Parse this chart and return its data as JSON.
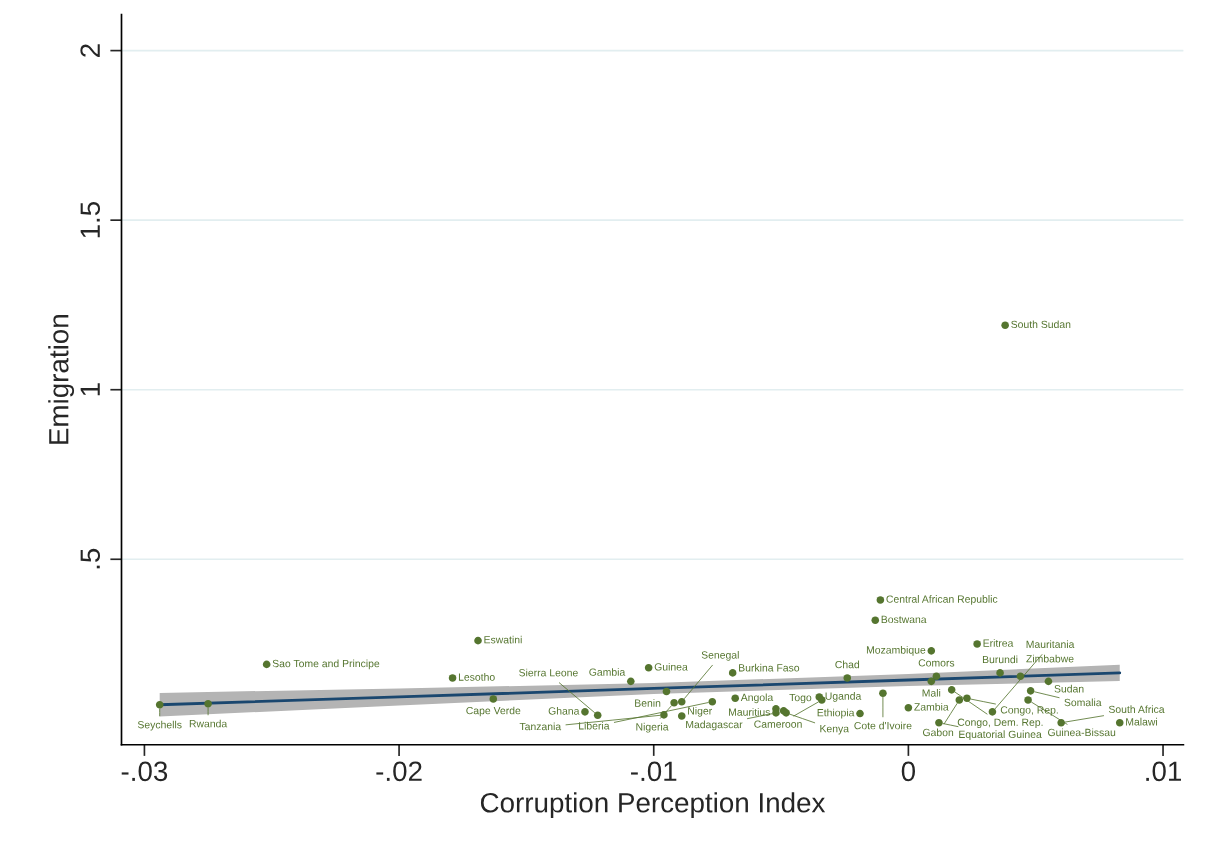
{
  "chart_data": {
    "type": "scatter",
    "xlabel": "Corruption Perception Index",
    "ylabel": "Emigration",
    "xlim": [
      -0.0309,
      0.0108
    ],
    "ylim": [
      -0.047,
      2.106
    ],
    "xticks": [
      {
        "value": -0.03,
        "label": "-.03"
      },
      {
        "value": -0.02,
        "label": "-.02"
      },
      {
        "value": -0.01,
        "label": "-.01"
      },
      {
        "value": 0,
        "label": "0"
      },
      {
        "value": 0.01,
        "label": ".01"
      }
    ],
    "yticks": [
      {
        "value": 0.5,
        "label": ".5"
      },
      1,
      1.5,
      2
    ],
    "grid": "y",
    "series": [
      {
        "color": "#55752f",
        "marker": "circle",
        "x": [
          0.0038,
          -0.0011,
          -0.0013,
          -0.0169,
          0.0027,
          0.0009,
          -0.0252,
          -0.0102,
          -0.0069,
          0.0036,
          -0.0179,
          0.0011,
          -0.0024,
          0.0044,
          -0.0109,
          0.0009,
          0.0055,
          -0.0095,
          -0.0068,
          -0.001,
          0.0017,
          0.0023,
          0.002,
          0.0048,
          0.0047,
          0.0033,
          0.0,
          -0.0019,
          0.0012,
          0.006,
          0.0083,
          -0.0035,
          -0.0034,
          -0.0052,
          -0.0052,
          -0.0049,
          -0.0048,
          -0.0092,
          -0.0089,
          -0.0077,
          -0.0096,
          -0.0089,
          -0.0127,
          -0.0122,
          -0.0163,
          -0.0294,
          -0.0275
        ],
        "values": [
          1.19,
          0.38,
          0.32,
          0.26,
          0.25,
          0.23,
          0.19,
          0.18,
          0.165,
          0.165,
          0.15,
          0.155,
          0.15,
          0.155,
          0.14,
          0.14,
          0.14,
          0.11,
          0.09,
          0.105,
          0.115,
          0.09,
          0.085,
          0.112,
          0.085,
          0.05,
          0.062,
          0.045,
          0.018,
          0.018,
          0.018,
          0.094,
          0.085,
          0.059,
          0.047,
          0.053,
          0.047,
          0.077,
          0.08,
          0.08,
          0.041,
          0.038,
          0.05,
          0.04,
          0.088,
          0.071,
          0.074
        ]
      },
      {
        "type": "line",
        "color": "#1a476f",
        "x": [
          -0.0294,
          -0.02,
          -0.01,
          0,
          0.0083
        ],
        "values": [
          0.071,
          0.094,
          0.119,
          0.144,
          0.165
        ],
        "lower": [
          0.036,
          0.069,
          0.103,
          0.126,
          0.141
        ],
        "upper": [
          0.106,
          0.119,
          0.135,
          0.162,
          0.189
        ]
      }
    ],
    "annotations": [
      {
        "text": "South Sudan",
        "x": 0.0038,
        "y": 1.19
      },
      {
        "text": "Central African Republic",
        "x": -0.0011,
        "y": 0.38
      },
      {
        "text": "Bostwana",
        "x": -0.0013,
        "y": 0.32
      },
      {
        "text": "Eswatini",
        "x": -0.0169,
        "y": 0.26
      },
      {
        "text": "Eritrea",
        "x": 0.0027,
        "y": 0.25
      },
      {
        "text": "Mozambique",
        "x": 0.0009,
        "y": 0.23
      },
      {
        "text": "Sao Tome and Principe",
        "x": -0.0252,
        "y": 0.19
      },
      {
        "text": "Guinea",
        "x": -0.0102,
        "y": 0.18
      },
      {
        "text": "Burkina Faso",
        "x": -0.0069,
        "y": 0.165
      },
      {
        "text": "Burundi",
        "x": 0.0036,
        "y": 0.165
      },
      {
        "text": "Lesotho",
        "x": -0.0179,
        "y": 0.15
      },
      {
        "text": "Comors",
        "x": 0.0011,
        "y": 0.155
      },
      {
        "text": "Chad",
        "x": -0.0024,
        "y": 0.15
      },
      {
        "text": "Zimbabwe",
        "x": 0.0044,
        "y": 0.155
      },
      {
        "text": "Gambia",
        "x": -0.0109,
        "y": 0.14
      },
      {
        "text": "Mali",
        "x": 0.0009,
        "y": 0.14
      },
      {
        "text": "Sudan",
        "x": 0.0055,
        "y": 0.14
      },
      {
        "text": "Benin",
        "x": -0.0095,
        "y": 0.11
      },
      {
        "text": "Angola",
        "x": -0.0068,
        "y": 0.09
      },
      {
        "text": "Cote d'Ivoire",
        "x": -0.001,
        "y": 0.105
      },
      {
        "text": "Congo, Dem. Rep.",
        "x": 0.0017,
        "y": 0.115
      },
      {
        "text": "Congo, Rep.",
        "x": 0.0023,
        "y": 0.09
      },
      {
        "text": "Gabon",
        "x": 0.002,
        "y": 0.085
      },
      {
        "text": "Somalia",
        "x": 0.0048,
        "y": 0.112
      },
      {
        "text": "Guinea-Bissau",
        "x": 0.0047,
        "y": 0.085
      },
      {
        "text": "Mauritania",
        "x": 0.0033,
        "y": 0.05
      },
      {
        "text": "Zambia",
        "x": 0.0,
        "y": 0.062
      },
      {
        "text": "Ethiopia",
        "x": -0.0019,
        "y": 0.045
      },
      {
        "text": "Equatorial Guinea",
        "x": 0.0012,
        "y": 0.018
      },
      {
        "text": "South Africa",
        "x": 0.006,
        "y": 0.018
      },
      {
        "text": "Malawi",
        "x": 0.0083,
        "y": 0.018
      },
      {
        "text": "Uganda",
        "x": -0.0035,
        "y": 0.094
      },
      {
        "text": "Cameroon",
        "x": -0.0034,
        "y": 0.085
      },
      {
        "text": "Mauritius",
        "x": -0.0052,
        "y": 0.059
      },
      {
        "text": "Madagascar",
        "x": -0.0052,
        "y": 0.047
      },
      {
        "text": "Togo",
        "x": -0.0049,
        "y": 0.053
      },
      {
        "text": "Kenya",
        "x": -0.0048,
        "y": 0.047
      },
      {
        "text": "Nigeria",
        "x": -0.0092,
        "y": 0.077
      },
      {
        "text": "Senegal",
        "x": -0.0089,
        "y": 0.08
      },
      {
        "text": "Liberia",
        "x": -0.0077,
        "y": 0.08
      },
      {
        "text": "Tanzania",
        "x": -0.0096,
        "y": 0.041
      },
      {
        "text": "Niger",
        "x": -0.0089,
        "y": 0.038
      },
      {
        "text": "Ghana",
        "x": -0.0127,
        "y": 0.05
      },
      {
        "text": "Sierra Leone",
        "x": -0.0122,
        "y": 0.04
      },
      {
        "text": "Cape Verde",
        "x": -0.0163,
        "y": 0.088
      },
      {
        "text": "Seychells",
        "x": -0.0294,
        "y": 0.071
      },
      {
        "text": "Rwanda",
        "x": -0.0275,
        "y": 0.074
      }
    ]
  }
}
